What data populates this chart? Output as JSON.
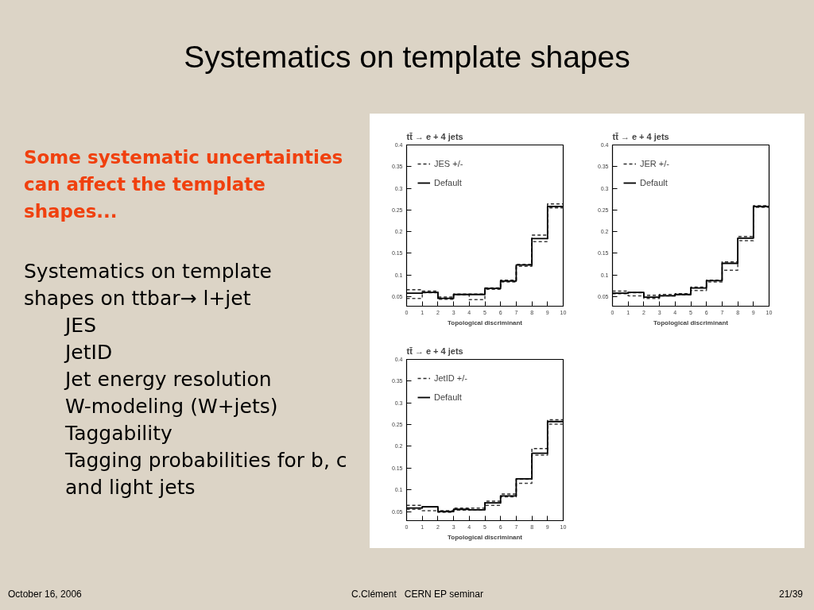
{
  "chart_data": [
    {
      "type": "other",
      "title": "Systematics on template shapes",
      "subtitle": "Some systematic uncertainties can affect the template shapes...",
      "annotations": [
        "Systematics on template shapes on ttbar→ l+jet",
        "JES",
        "JetID",
        "Jet energy resolution",
        "W-modeling (W+jets)",
        "Taggability",
        "Tagging probabilities for b, c and light jets"
      ]
    },
    {
      "type": "histogram",
      "title": "tt̄ → e + 4 jets",
      "xlabel": "Topological discriminant",
      "bins": [
        0,
        1,
        2,
        3,
        4,
        5,
        6,
        7,
        8,
        9,
        10
      ],
      "series": [
        {
          "name": "JES +/-",
          "color": "#2b2b2b",
          "line_style": "dashed",
          "values": [
            0.066,
            0.063,
            0.049,
            0.056,
            0.056,
            0.07,
            0.088,
            0.124,
            0.192,
            0.264
          ]
        },
        {
          "color": "#404040",
          "line_style": "dashed",
          "values": [
            0.046,
            0.059,
            0.044,
            0.054,
            0.043,
            0.067,
            0.084,
            0.12,
            0.177,
            0.255
          ]
        },
        {
          "name": "Default",
          "color": "#000000",
          "line_style": "solid",
          "values": [
            0.058,
            0.06,
            0.046,
            0.055,
            0.055,
            0.069,
            0.086,
            0.123,
            0.184,
            0.258
          ]
        }
      ],
      "xlim": [
        0,
        10
      ],
      "xticks": [
        0,
        1,
        2,
        3,
        4,
        5,
        6,
        7,
        8,
        9,
        10
      ],
      "ylim": [
        0.028,
        0.4
      ],
      "yticks": [
        0.05,
        0.1,
        0.15,
        0.2,
        0.25,
        0.3,
        0.35,
        0.4
      ],
      "legend": "top left"
    },
    {
      "type": "histogram",
      "title": "tt̄ → e + 4 jets",
      "xlabel": "Topological discriminant",
      "bins": [
        0,
        1,
        2,
        3,
        4,
        5,
        6,
        7,
        8,
        9,
        10
      ],
      "series": [
        {
          "name": "JER +/-",
          "color": "#2b2b2b",
          "line_style": "dashed",
          "values": [
            0.063,
            0.059,
            0.053,
            0.055,
            0.057,
            0.072,
            0.088,
            0.13,
            0.189,
            0.26
          ]
        },
        {
          "color": "#404040",
          "line_style": "dashed",
          "values": [
            0.057,
            0.052,
            0.046,
            0.052,
            0.054,
            0.064,
            0.084,
            0.111,
            0.179,
            0.256
          ]
        },
        {
          "name": "Default",
          "color": "#000000",
          "line_style": "solid",
          "values": [
            0.058,
            0.06,
            0.049,
            0.052,
            0.055,
            0.07,
            0.087,
            0.127,
            0.185,
            0.258
          ]
        }
      ],
      "xlim": [
        0,
        10
      ],
      "xticks": [
        0,
        1,
        2,
        3,
        4,
        5,
        6,
        7,
        8,
        9,
        10
      ],
      "ylim": [
        0.028,
        0.4
      ],
      "yticks": [
        0.05,
        0.1,
        0.15,
        0.2,
        0.25,
        0.3,
        0.35,
        0.4
      ],
      "legend": "top left"
    },
    {
      "type": "histogram",
      "title": "tt̄ → e + 4 jets",
      "xlabel": "Topological discriminant",
      "bins": [
        0,
        1,
        2,
        3,
        4,
        5,
        6,
        7,
        8,
        9,
        10
      ],
      "series": [
        {
          "name": "JetID +/-",
          "color": "#2b2b2b",
          "line_style": "dashed",
          "values": [
            0.064,
            0.061,
            0.052,
            0.058,
            0.058,
            0.074,
            0.09,
            0.125,
            0.195,
            0.261
          ]
        },
        {
          "color": "#404040",
          "line_style": "dashed",
          "values": [
            0.055,
            0.052,
            0.048,
            0.053,
            0.054,
            0.064,
            0.084,
            0.115,
            0.18,
            0.251
          ]
        },
        {
          "name": "Default",
          "color": "#000000",
          "line_style": "solid",
          "values": [
            0.058,
            0.061,
            0.05,
            0.055,
            0.054,
            0.07,
            0.086,
            0.125,
            0.184,
            0.257
          ]
        }
      ],
      "xlim": [
        0,
        10
      ],
      "xticks": [
        0,
        1,
        2,
        3,
        4,
        5,
        6,
        7,
        8,
        9,
        10
      ],
      "ylim": [
        0.029,
        0.4
      ],
      "yticks": [
        0.05,
        0.1,
        0.15,
        0.2,
        0.25,
        0.3,
        0.35,
        0.4
      ],
      "legend": "top left"
    },
    {
      "type": "other",
      "annotations": [
        "October 16, 2006",
        "C.Clément   CERN EP seminar",
        "21/39"
      ]
    }
  ]
}
